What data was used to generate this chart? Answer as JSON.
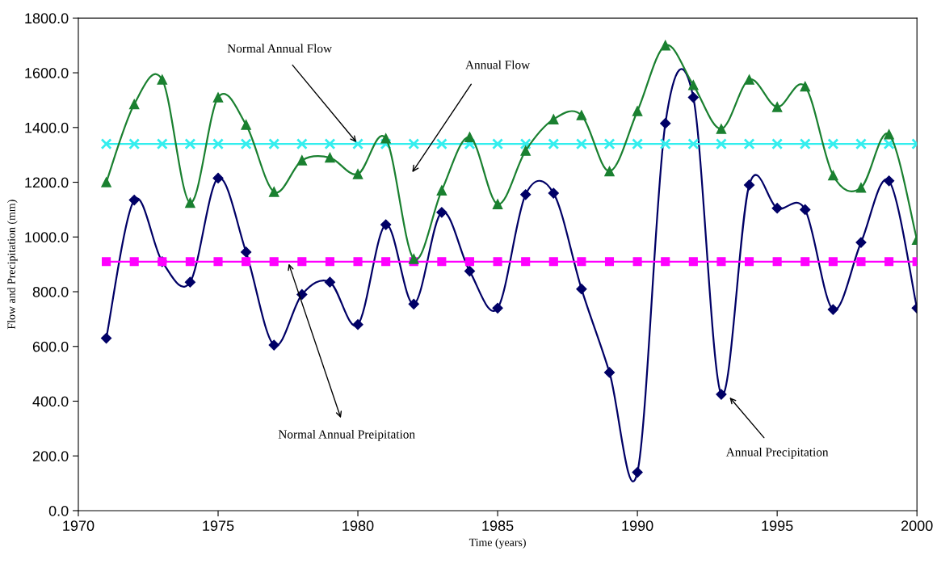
{
  "chart_data": {
    "type": "line",
    "xlabel": "Time (years)",
    "ylabel": "Flow and Precipitation (mm)",
    "x": [
      1971,
      1972,
      1973,
      1974,
      1975,
      1976,
      1977,
      1978,
      1979,
      1980,
      1981,
      1982,
      1983,
      1984,
      1985,
      1986,
      1987,
      1988,
      1989,
      1990,
      1991,
      1992,
      1993,
      1994,
      1995,
      1996,
      1997,
      1998,
      1999,
      2000
    ],
    "series": [
      {
        "color": "#1a8030",
        "marker": "triangle",
        "values": [
          1200,
          1485,
          1575,
          1125,
          1510,
          1410,
          1165,
          1280,
          1290,
          1230,
          1360,
          920,
          1170,
          1365,
          1120,
          1315,
          1430,
          1445,
          1240,
          1460,
          1700,
          1555,
          1395,
          1575,
          1475,
          1550,
          1225,
          1180,
          1375,
          990
        ]
      },
      {
        "color": "#000066",
        "marker": "diamond",
        "values": [
          630,
          1135,
          910,
          835,
          1215,
          945,
          605,
          790,
          835,
          680,
          1045,
          755,
          1090,
          875,
          740,
          1155,
          1160,
          810,
          505,
          140,
          1415,
          1510,
          425,
          1190,
          1105,
          1100,
          735,
          980,
          1205,
          740
        ]
      },
      {
        "color": "#33eeee",
        "marker": "cross",
        "values": [
          1340,
          1340,
          1340,
          1340,
          1340,
          1340,
          1340,
          1340,
          1340,
          1340,
          1340,
          1340,
          1340,
          1340,
          1340,
          1340,
          1340,
          1340,
          1340,
          1340,
          1340,
          1340,
          1340,
          1340,
          1340,
          1340,
          1340,
          1340,
          1340,
          1340
        ]
      },
      {
        "color": "#ff00ff",
        "marker": "square",
        "values": [
          910,
          910,
          910,
          910,
          910,
          910,
          910,
          910,
          910,
          910,
          910,
          910,
          910,
          910,
          910,
          910,
          910,
          910,
          910,
          910,
          910,
          910,
          910,
          910,
          910,
          910,
          910,
          910,
          910,
          910
        ]
      }
    ],
    "annotations": [
      {
        "text": "Normal Annual Flow",
        "x": 1980,
        "y": 1340
      },
      "Annual Flow",
      {
        "text": "Normal Annual Preipitation",
        "x": 1977.5,
        "y": 910
      },
      {
        "text": "Annual Precipitation",
        "x": 1993.25,
        "y": 420
      }
    ],
    "xlim": [
      1970,
      2000
    ],
    "xticks": [
      1970,
      1975,
      1980,
      1985,
      1990,
      1995,
      2000
    ],
    "ylim": [
      0,
      1800
    ],
    "yticks": [
      {
        "value": 0,
        "label": "0.0"
      },
      {
        "value": 200,
        "label": "200.0"
      },
      {
        "value": 400,
        "label": "400.0"
      },
      {
        "value": 600,
        "label": "600.0"
      },
      {
        "value": 800,
        "label": "800.0"
      },
      {
        "value": 1000,
        "label": "1000.0"
      },
      {
        "value": 1200,
        "label": "1200.0"
      },
      {
        "value": 1400,
        "label": "1400.0"
      },
      {
        "value": 1600,
        "label": "1600.0"
      },
      {
        "value": 1800,
        "label": "1800.0"
      }
    ],
    "grid": false,
    "line_style": "solid"
  }
}
